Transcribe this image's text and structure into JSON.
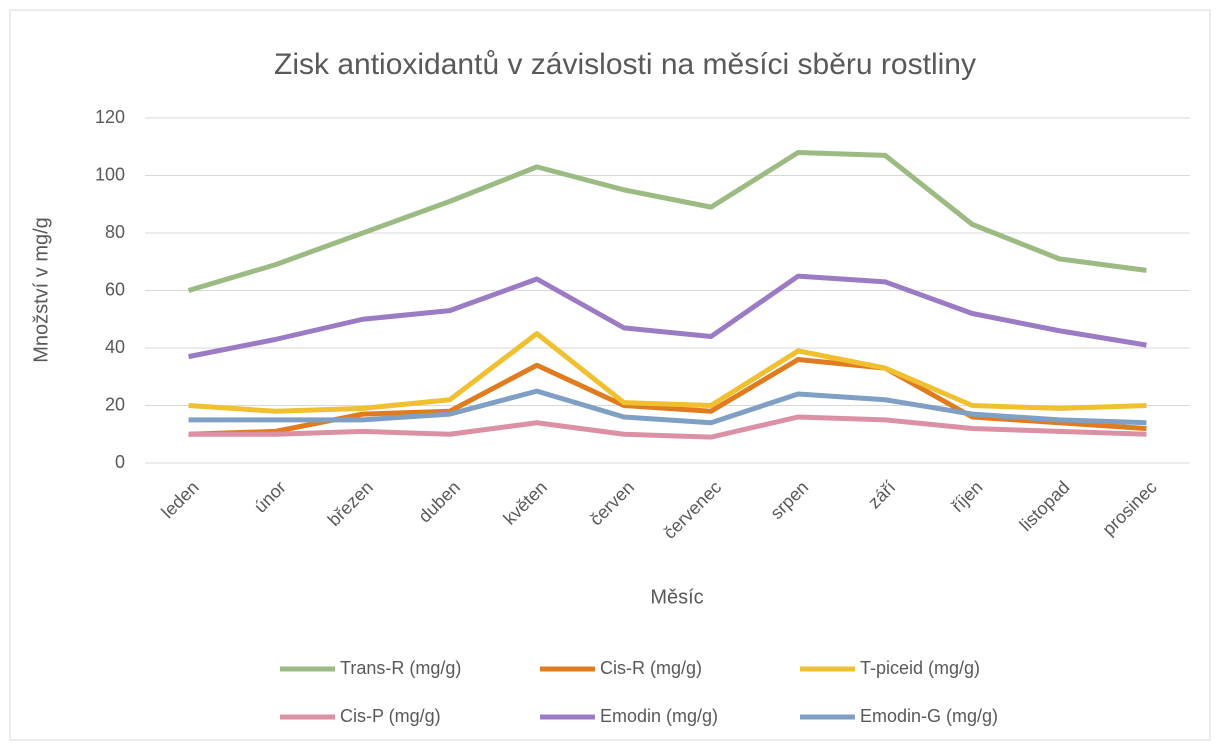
{
  "chart_data": {
    "type": "line",
    "title": "Zisk antioxidantů v závislosti na měsíci sběru rostliny",
    "x_label": "Měsíc",
    "y_label": "Množství v mg/g",
    "categories": [
      "leden",
      "únor",
      "březen",
      "duben",
      "květen",
      "červen",
      "červenec",
      "srpen",
      "září",
      "říjen",
      "listopad",
      "prosinec"
    ],
    "series": [
      {
        "name": "Trans-R (mg/g)",
        "color": "#9bbb83",
        "values": [
          60,
          69,
          80,
          91,
          103,
          95,
          89,
          108,
          107,
          83,
          71,
          67
        ]
      },
      {
        "name": "Cis-R (mg/g)",
        "color": "#e07b1f",
        "values": [
          10,
          11,
          17,
          18,
          34,
          20,
          18,
          36,
          33,
          16,
          14,
          12
        ]
      },
      {
        "name": "T-piceid (mg/g)",
        "color": "#f0c030",
        "values": [
          20,
          18,
          19,
          22,
          45,
          21,
          20,
          39,
          33,
          20,
          19,
          20
        ]
      },
      {
        "name": "Cis-P (mg/g)",
        "color": "#dc90a4",
        "values": [
          10,
          10,
          11,
          10,
          14,
          10,
          9,
          16,
          15,
          12,
          11,
          10
        ]
      },
      {
        "name": "Emodin (mg/g)",
        "color": "#9b7bc4",
        "values": [
          37,
          43,
          50,
          53,
          64,
          47,
          44,
          65,
          63,
          52,
          46,
          41
        ]
      },
      {
        "name": "Emodin-G (mg/g)",
        "color": "#7f9fc4",
        "values": [
          15,
          15,
          15,
          17,
          25,
          16,
          14,
          24,
          22,
          17,
          15,
          14
        ]
      }
    ],
    "ylim": [
      0,
      120
    ],
    "yticks": [
      0,
      20,
      40,
      60,
      80,
      100,
      120
    ],
    "grid": true,
    "legend": "bottom"
  }
}
